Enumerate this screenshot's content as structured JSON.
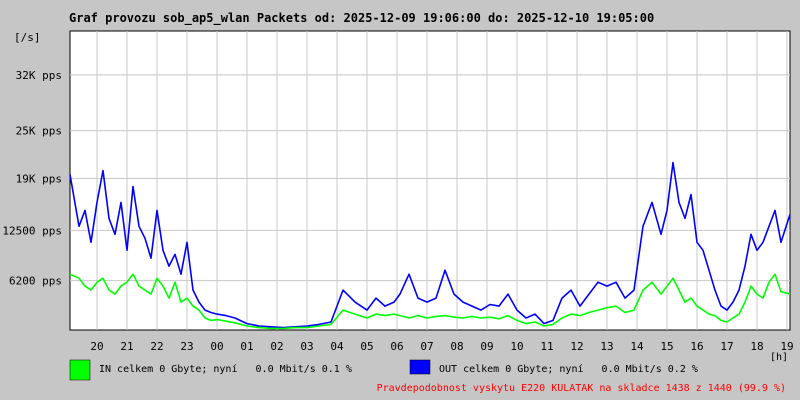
{
  "chart_data": {
    "type": "line",
    "title": "Graf provozu sob_ap5_wlan Packets od: 2025-12-09 19:06:00 do: 2025-12-10 19:05:00",
    "ylabel": "[/s]",
    "xlabel": "[h]",
    "ylim": [
      0,
      37500
    ],
    "y_ticks": [
      {
        "value": 6200,
        "label": "6200 pps"
      },
      {
        "value": 12500,
        "label": "12500 pps"
      },
      {
        "value": 19000,
        "label": "19K pps"
      },
      {
        "value": 25000,
        "label": "25K pps"
      },
      {
        "value": 32000,
        "label": "32K pps"
      }
    ],
    "x_ticks": [
      "20",
      "21",
      "22",
      "23",
      "00",
      "01",
      "02",
      "03",
      "04",
      "05",
      "06",
      "07",
      "08",
      "09",
      "10",
      "11",
      "12",
      "13",
      "14",
      "15",
      "16",
      "17",
      "18",
      "19"
    ],
    "xlim": [
      19.1,
      43.1
    ],
    "grid": true,
    "series": [
      {
        "name": "OUT",
        "color": "#0000ff",
        "x": [
          19.1,
          19.4,
          19.6,
          19.8,
          20.0,
          20.2,
          20.4,
          20.6,
          20.8,
          21.0,
          21.2,
          21.4,
          21.6,
          21.8,
          22.0,
          22.2,
          22.4,
          22.6,
          22.8,
          23.0,
          23.2,
          23.4,
          23.6,
          23.8,
          24.0,
          24.3,
          24.6,
          25.0,
          25.4,
          25.8,
          26.2,
          26.6,
          27.0,
          27.4,
          27.8,
          28.2,
          28.6,
          29.0,
          29.3,
          29.6,
          29.9,
          30.1,
          30.4,
          30.7,
          31.0,
          31.3,
          31.6,
          31.9,
          32.2,
          32.5,
          32.8,
          33.1,
          33.4,
          33.7,
          34.0,
          34.3,
          34.6,
          34.9,
          35.2,
          35.5,
          35.8,
          36.1,
          36.4,
          36.7,
          37.0,
          37.3,
          37.6,
          37.9,
          38.2,
          38.5,
          38.8,
          39.0,
          39.2,
          39.4,
          39.6,
          39.8,
          40.0,
          40.2,
          40.4,
          40.6,
          40.8,
          41.0,
          41.2,
          41.4,
          41.6,
          41.8,
          42.0,
          42.2,
          42.4,
          42.6,
          42.8,
          43.1
        ],
        "values": [
          19500,
          13000,
          15000,
          11000,
          16000,
          20000,
          14000,
          12000,
          16000,
          10000,
          18000,
          13000,
          11500,
          9000,
          15000,
          10000,
          8000,
          9500,
          7000,
          11000,
          5000,
          3500,
          2500,
          2200,
          2000,
          1800,
          1500,
          800,
          500,
          400,
          300,
          400,
          500,
          700,
          1000,
          5000,
          3500,
          2500,
          4000,
          3000,
          3500,
          4500,
          7000,
          4000,
          3500,
          4000,
          7500,
          4500,
          3500,
          3000,
          2500,
          3200,
          3000,
          4500,
          2500,
          1500,
          2000,
          800,
          1200,
          4000,
          5000,
          3000,
          4500,
          6000,
          5500,
          6000,
          4000,
          5000,
          13000,
          16000,
          12000,
          15000,
          21000,
          16000,
          14000,
          17000,
          11000,
          10000,
          7500,
          5000,
          3000,
          2500,
          3500,
          5000,
          8000,
          12000,
          10000,
          11000,
          13000,
          15000,
          11000,
          14500
        ]
      },
      {
        "name": "IN",
        "color": "#00ff00",
        "x": [
          19.1,
          19.4,
          19.6,
          19.8,
          20.0,
          20.2,
          20.4,
          20.6,
          20.8,
          21.0,
          21.2,
          21.4,
          21.6,
          21.8,
          22.0,
          22.2,
          22.4,
          22.6,
          22.8,
          23.0,
          23.2,
          23.4,
          23.6,
          23.8,
          24.0,
          24.3,
          24.6,
          25.0,
          25.4,
          25.8,
          26.2,
          26.6,
          27.0,
          27.4,
          27.8,
          28.2,
          28.6,
          29.0,
          29.3,
          29.6,
          29.9,
          30.1,
          30.4,
          30.7,
          31.0,
          31.3,
          31.6,
          31.9,
          32.2,
          32.5,
          32.8,
          33.1,
          33.4,
          33.7,
          34.0,
          34.3,
          34.6,
          34.9,
          35.2,
          35.5,
          35.8,
          36.1,
          36.4,
          36.7,
          37.0,
          37.3,
          37.6,
          37.9,
          38.2,
          38.5,
          38.8,
          39.0,
          39.2,
          39.4,
          39.6,
          39.8,
          40.0,
          40.2,
          40.4,
          40.6,
          40.8,
          41.0,
          41.2,
          41.4,
          41.6,
          41.8,
          42.0,
          42.2,
          42.4,
          42.6,
          42.8,
          43.1
        ],
        "values": [
          7000,
          6500,
          5500,
          5000,
          6000,
          6500,
          5000,
          4500,
          5500,
          6000,
          7000,
          5500,
          5000,
          4500,
          6500,
          5500,
          4000,
          6000,
          3500,
          4000,
          3000,
          2500,
          1500,
          1200,
          1300,
          1100,
          900,
          500,
          300,
          200,
          200,
          300,
          300,
          500,
          700,
          2500,
          2000,
          1500,
          2000,
          1800,
          2000,
          1800,
          1500,
          1800,
          1500,
          1700,
          1800,
          1600,
          1500,
          1700,
          1500,
          1600,
          1400,
          1800,
          1200,
          800,
          1000,
          500,
          700,
          1500,
          2000,
          1800,
          2200,
          2500,
          2800,
          3000,
          2200,
          2500,
          5000,
          6000,
          4500,
          5500,
          6500,
          5000,
          3500,
          4000,
          3000,
          2500,
          2000,
          1800,
          1200,
          1000,
          1500,
          2000,
          3500,
          5500,
          4500,
          4000,
          6000,
          7000,
          4800,
          4500
        ]
      }
    ]
  },
  "legend": {
    "in_text": "IN celkem 0 Gbyte; nyní   0.0 Mbit/s 0.1 %",
    "out_text": "OUT celkem 0 Gbyte; nyní   0.0 Mbit/s 0.2 %",
    "in_color": "#00ff00",
    "out_color": "#0000ff"
  },
  "footer": {
    "note": "Pravdepodobnost vyskytu E220 KULATAK na skladce 1438 z 1440 (99.9 %)",
    "color": "#ff0000"
  },
  "colors": {
    "background": "#c6c6c6",
    "plot_area": "#ffffff",
    "grid": "#c8c8c8",
    "text": "#000000"
  }
}
